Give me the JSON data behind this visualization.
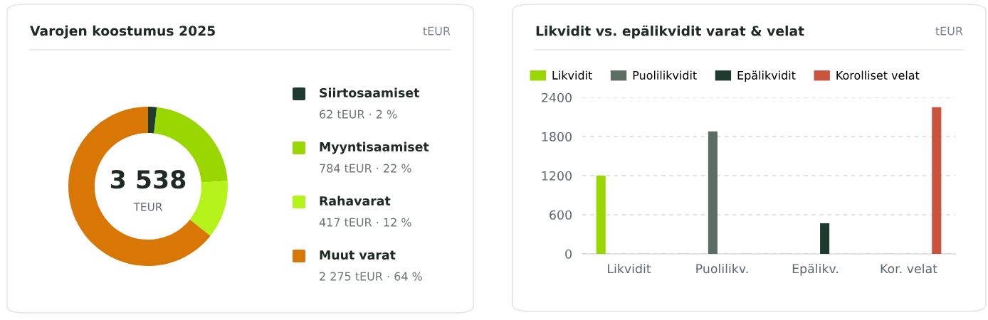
{
  "chart_data": [
    {
      "type": "donut",
      "title": "Varojen koostumus 2025",
      "annotations": [
        "tEUR",
        "3 538",
        "TEUR"
      ],
      "categories": [
        "Siirtosaamiset",
        "Myyntisaamiset",
        "Rahavarat",
        "Muut varat"
      ],
      "values": [
        62,
        784,
        417,
        2275
      ],
      "value_labels": [
        "62 tEUR · 2 %",
        "784 tEUR · 22 %",
        "417 tEUR · 12 %",
        "2 275 tEUR · 64 %"
      ],
      "colors": [
        "#1f3a2f",
        "#9ad600",
        "#b5f31a",
        "#d97706"
      ],
      "legend": "right"
    },
    {
      "type": "bar",
      "title": "Likvidit vs. epälikvidit varat & velat",
      "annotations": [
        "tEUR"
      ],
      "categories": [
        "Likvidit",
        "Puolilikv.",
        "Epälikv.",
        "Kor. velat"
      ],
      "series": [
        {
          "name": "Likvidit",
          "color": "#9ad600",
          "values": [
            1200,
            null,
            null,
            null
          ]
        },
        {
          "name": "Puolilikvidit",
          "color": "#5a6e64",
          "values": [
            null,
            1880,
            null,
            null
          ]
        },
        {
          "name": "Epälikvidit",
          "color": "#1f3a2f",
          "values": [
            null,
            null,
            470,
            null
          ]
        },
        {
          "name": "Korolliset velat",
          "color": "#c9533c",
          "values": [
            null,
            null,
            null,
            2250
          ]
        }
      ],
      "ylim": [
        0,
        2400
      ],
      "yticks": [
        0,
        600,
        1200,
        1800,
        2400
      ],
      "grid": "y",
      "legend": "top"
    }
  ]
}
